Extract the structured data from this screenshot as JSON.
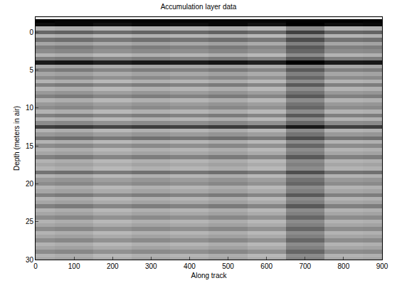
{
  "chart_data": {
    "type": "heatmap",
    "title": "Accumulation layer data",
    "x_label": "Along track",
    "y_label": "Depth (meters in air)",
    "xlim": [
      0,
      900
    ],
    "ylim": [
      30,
      -2
    ],
    "xticks": [
      0,
      100,
      200,
      300,
      400,
      500,
      600,
      700,
      800,
      900
    ],
    "yticks": [
      0,
      5,
      10,
      15,
      20,
      25,
      30
    ],
    "zlim": [
      0,
      1
    ],
    "x": [
      0,
      100,
      200,
      300,
      400,
      500,
      600,
      700,
      800,
      900
    ],
    "y": [
      -2,
      -1.5,
      -1,
      -0.5,
      0,
      0.5,
      1,
      1.5,
      2,
      2.5,
      3,
      3.5,
      4,
      4.5,
      5,
      5.5,
      6,
      6.5,
      7,
      7.5,
      8,
      8.5,
      9,
      9.5,
      10,
      10.5,
      11,
      11.5,
      12,
      12.5,
      13,
      13.5,
      14,
      14.5,
      15,
      15.5,
      16,
      16.5,
      17,
      17.5,
      18,
      18.5,
      19,
      19.5,
      20,
      20.5,
      21,
      21.5,
      22,
      22.5,
      23,
      23.5,
      24,
      24.5,
      25,
      25.5,
      26,
      26.5,
      27,
      27.5,
      28,
      28.5,
      29,
      29.5,
      30
    ],
    "cells": [
      [
        0.05,
        0.05,
        0.05,
        0.05,
        0.05,
        0.05,
        0.05,
        0.05,
        0.05,
        0.05
      ],
      [
        1,
        0.98,
        0.98,
        0.99,
        0.99,
        0.98,
        0.98,
        1,
        1,
        0.99
      ],
      [
        0.95,
        0.97,
        0.93,
        0.96,
        0.94,
        0.97,
        0.93,
        1,
        0.95,
        0.96
      ],
      [
        0.3,
        0.32,
        0.28,
        0.31,
        0.29,
        0.32,
        0.28,
        0.45,
        0.3,
        0.31
      ],
      [
        0.6,
        0.62,
        0.58,
        0.61,
        0.59,
        0.62,
        0.58,
        0.75,
        0.6,
        0.61
      ],
      [
        0.3,
        0.32,
        0.28,
        0.31,
        0.29,
        0.32,
        0.28,
        0.45,
        0.3,
        0.31
      ],
      [
        0.55,
        0.57,
        0.53,
        0.56,
        0.54,
        0.57,
        0.53,
        0.7,
        0.55,
        0.56
      ],
      [
        0.35,
        0.37,
        0.33,
        0.36,
        0.34,
        0.37,
        0.33,
        0.5,
        0.35,
        0.36
      ],
      [
        0.5,
        0.52,
        0.48,
        0.51,
        0.49,
        0.52,
        0.48,
        0.65,
        0.5,
        0.51
      ],
      [
        0.45,
        0.47,
        0.43,
        0.46,
        0.44,
        0.47,
        0.43,
        0.6,
        0.45,
        0.46
      ],
      [
        0.3,
        0.32,
        0.28,
        0.31,
        0.29,
        0.32,
        0.28,
        0.45,
        0.3,
        0.31
      ],
      [
        0.5,
        0.52,
        0.48,
        0.51,
        0.49,
        0.52,
        0.48,
        0.65,
        0.5,
        0.51
      ],
      [
        0.9,
        0.92,
        0.88,
        0.91,
        0.89,
        0.92,
        0.88,
        1,
        0.9,
        0.91
      ],
      [
        0.35,
        0.37,
        0.33,
        0.36,
        0.34,
        0.37,
        0.33,
        0.5,
        0.35,
        0.36
      ],
      [
        0.5,
        0.52,
        0.48,
        0.51,
        0.49,
        0.52,
        0.48,
        0.65,
        0.5,
        0.51
      ],
      [
        0.35,
        0.37,
        0.33,
        0.36,
        0.34,
        0.37,
        0.33,
        0.5,
        0.35,
        0.36
      ],
      [
        0.45,
        0.47,
        0.43,
        0.46,
        0.44,
        0.47,
        0.43,
        0.6,
        0.45,
        0.46
      ],
      [
        0.3,
        0.32,
        0.28,
        0.31,
        0.29,
        0.32,
        0.28,
        0.45,
        0.3,
        0.31
      ],
      [
        0.5,
        0.52,
        0.48,
        0.51,
        0.49,
        0.52,
        0.48,
        0.65,
        0.5,
        0.51
      ],
      [
        0.3,
        0.32,
        0.28,
        0.31,
        0.29,
        0.32,
        0.28,
        0.45,
        0.3,
        0.31
      ],
      [
        0.4,
        0.42,
        0.38,
        0.41,
        0.39,
        0.42,
        0.38,
        0.55,
        0.4,
        0.41
      ],
      [
        0.5,
        0.52,
        0.48,
        0.51,
        0.49,
        0.52,
        0.48,
        0.65,
        0.5,
        0.51
      ],
      [
        0.3,
        0.32,
        0.28,
        0.31,
        0.29,
        0.32,
        0.28,
        0.45,
        0.3,
        0.31
      ],
      [
        0.4,
        0.42,
        0.38,
        0.41,
        0.39,
        0.42,
        0.38,
        0.55,
        0.4,
        0.41
      ],
      [
        0.45,
        0.47,
        0.43,
        0.46,
        0.44,
        0.47,
        0.43,
        0.6,
        0.45,
        0.46
      ],
      [
        0.3,
        0.32,
        0.28,
        0.31,
        0.29,
        0.32,
        0.28,
        0.45,
        0.3,
        0.31
      ],
      [
        0.5,
        0.52,
        0.48,
        0.51,
        0.49,
        0.52,
        0.48,
        0.65,
        0.5,
        0.51
      ],
      [
        0.3,
        0.32,
        0.28,
        0.31,
        0.29,
        0.32,
        0.28,
        0.45,
        0.3,
        0.31
      ],
      [
        0.45,
        0.47,
        0.43,
        0.46,
        0.44,
        0.47,
        0.43,
        0.6,
        0.45,
        0.46
      ],
      [
        0.75,
        0.77,
        0.73,
        0.76,
        0.74,
        0.77,
        0.73,
        0.9,
        0.75,
        0.76
      ],
      [
        0.3,
        0.32,
        0.28,
        0.31,
        0.29,
        0.32,
        0.28,
        0.45,
        0.3,
        0.31
      ],
      [
        0.4,
        0.42,
        0.38,
        0.41,
        0.39,
        0.42,
        0.38,
        0.55,
        0.4,
        0.41
      ],
      [
        0.55,
        0.57,
        0.53,
        0.56,
        0.54,
        0.57,
        0.53,
        0.7,
        0.55,
        0.56
      ],
      [
        0.3,
        0.32,
        0.28,
        0.31,
        0.29,
        0.32,
        0.28,
        0.45,
        0.3,
        0.31
      ],
      [
        0.45,
        0.47,
        0.43,
        0.46,
        0.44,
        0.47,
        0.43,
        0.6,
        0.45,
        0.46
      ],
      [
        0.3,
        0.32,
        0.28,
        0.31,
        0.29,
        0.32,
        0.28,
        0.45,
        0.3,
        0.31
      ],
      [
        0.35,
        0.37,
        0.33,
        0.36,
        0.34,
        0.37,
        0.33,
        0.5,
        0.35,
        0.36
      ],
      [
        0.5,
        0.52,
        0.48,
        0.51,
        0.49,
        0.52,
        0.48,
        0.65,
        0.5,
        0.51
      ],
      [
        0.3,
        0.32,
        0.28,
        0.31,
        0.29,
        0.32,
        0.28,
        0.45,
        0.3,
        0.31
      ],
      [
        0.35,
        0.37,
        0.33,
        0.36,
        0.34,
        0.37,
        0.33,
        0.5,
        0.35,
        0.36
      ],
      [
        0.3,
        0.32,
        0.28,
        0.31,
        0.29,
        0.32,
        0.28,
        0.45,
        0.3,
        0.31
      ],
      [
        0.55,
        0.57,
        0.53,
        0.56,
        0.54,
        0.57,
        0.53,
        0.7,
        0.55,
        0.56
      ],
      [
        0.3,
        0.32,
        0.28,
        0.31,
        0.29,
        0.32,
        0.28,
        0.45,
        0.3,
        0.31
      ],
      [
        0.4,
        0.42,
        0.38,
        0.41,
        0.39,
        0.42,
        0.38,
        0.55,
        0.4,
        0.41
      ],
      [
        0.45,
        0.47,
        0.43,
        0.46,
        0.44,
        0.47,
        0.43,
        0.6,
        0.45,
        0.46
      ],
      [
        0.3,
        0.32,
        0.28,
        0.31,
        0.29,
        0.32,
        0.28,
        0.45,
        0.3,
        0.31
      ],
      [
        0.35,
        0.37,
        0.33,
        0.36,
        0.34,
        0.37,
        0.33,
        0.5,
        0.35,
        0.36
      ],
      [
        0.5,
        0.52,
        0.48,
        0.51,
        0.49,
        0.52,
        0.48,
        0.65,
        0.5,
        0.51
      ],
      [
        0.3,
        0.32,
        0.28,
        0.31,
        0.29,
        0.32,
        0.28,
        0.45,
        0.3,
        0.31
      ],
      [
        0.35,
        0.37,
        0.33,
        0.36,
        0.34,
        0.37,
        0.33,
        0.5,
        0.35,
        0.36
      ],
      [
        0.5,
        0.52,
        0.48,
        0.51,
        0.49,
        0.52,
        0.48,
        0.65,
        0.5,
        0.51
      ],
      [
        0.3,
        0.32,
        0.28,
        0.31,
        0.29,
        0.32,
        0.28,
        0.45,
        0.3,
        0.31
      ],
      [
        0.35,
        0.37,
        0.33,
        0.36,
        0.34,
        0.37,
        0.33,
        0.5,
        0.35,
        0.36
      ],
      [
        0.45,
        0.47,
        0.43,
        0.46,
        0.44,
        0.47,
        0.43,
        0.6,
        0.45,
        0.46
      ],
      [
        0.3,
        0.32,
        0.28,
        0.31,
        0.29,
        0.32,
        0.28,
        0.45,
        0.3,
        0.31
      ],
      [
        0.35,
        0.37,
        0.33,
        0.36,
        0.34,
        0.37,
        0.33,
        0.5,
        0.35,
        0.36
      ],
      [
        0.45,
        0.47,
        0.43,
        0.46,
        0.44,
        0.47,
        0.43,
        0.6,
        0.45,
        0.46
      ],
      [
        0.3,
        0.32,
        0.28,
        0.31,
        0.29,
        0.32,
        0.28,
        0.45,
        0.3,
        0.31
      ],
      [
        0.35,
        0.37,
        0.33,
        0.36,
        0.34,
        0.37,
        0.33,
        0.5,
        0.35,
        0.36
      ],
      [
        0.45,
        0.47,
        0.43,
        0.46,
        0.44,
        0.47,
        0.43,
        0.6,
        0.45,
        0.46
      ],
      [
        0.3,
        0.32,
        0.28,
        0.31,
        0.29,
        0.32,
        0.28,
        0.45,
        0.3,
        0.31
      ],
      [
        0.35,
        0.37,
        0.33,
        0.36,
        0.34,
        0.37,
        0.33,
        0.5,
        0.35,
        0.36
      ],
      [
        0.45,
        0.47,
        0.43,
        0.46,
        0.44,
        0.47,
        0.43,
        0.6,
        0.45,
        0.46
      ],
      [
        0.3,
        0.32,
        0.28,
        0.31,
        0.29,
        0.32,
        0.28,
        0.45,
        0.3,
        0.31
      ],
      [
        0.35,
        0.37,
        0.33,
        0.36,
        0.34,
        0.37,
        0.33,
        0.5,
        0.35,
        0.36
      ]
    ]
  }
}
